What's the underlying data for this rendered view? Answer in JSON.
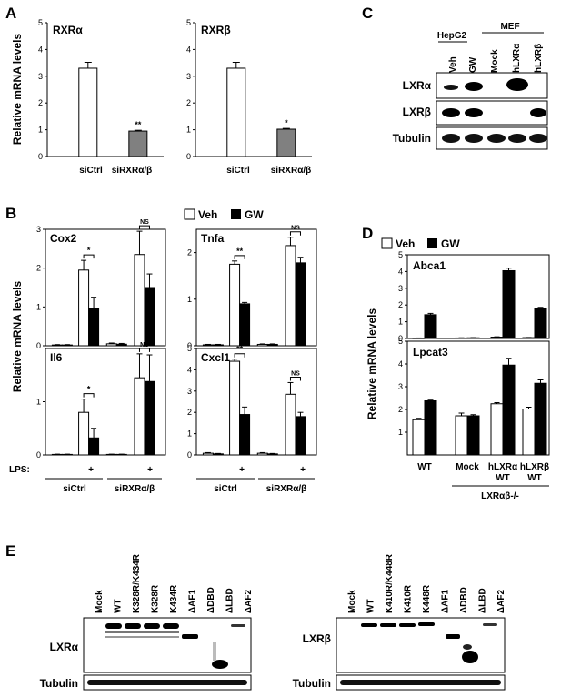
{
  "panels": {
    "A": "A",
    "B": "B",
    "C": "C",
    "D": "D",
    "E": "E"
  },
  "common": {
    "ylabel": "Relative mRNA levels",
    "veh": "Veh",
    "gw": "GW",
    "ns": "NS",
    "lps": "LPS:",
    "minus": "–",
    "plus": "+"
  },
  "chart_data": [
    {
      "id": "A1",
      "type": "bar",
      "title": "RXRα",
      "categories": [
        "siCtrl",
        "siRXRα/β"
      ],
      "values": [
        3.3,
        0.95
      ],
      "errors": [
        0.22,
        0.03
      ],
      "sig": [
        "",
        "**"
      ],
      "colors": [
        "#ffffff",
        "#808080"
      ],
      "ylabel": "Relative mRNA levels",
      "ylim": [
        0,
        5
      ],
      "yticks": [
        0,
        1,
        2,
        3,
        4,
        5
      ]
    },
    {
      "id": "A2",
      "type": "bar",
      "title": "RXRβ",
      "categories": [
        "siCtrl",
        "siRXRα/β"
      ],
      "values": [
        3.3,
        1.02
      ],
      "errors": [
        0.22,
        0.03
      ],
      "sig": [
        "",
        "*"
      ],
      "colors": [
        "#ffffff",
        "#808080"
      ],
      "ylim": [
        0,
        5
      ],
      "yticks": [
        0,
        1,
        2,
        3,
        4,
        5
      ]
    },
    {
      "id": "B1",
      "type": "bar",
      "title": "Cox2",
      "x": [
        "LPS-",
        "LPS+",
        "LPS-",
        "LPS+"
      ],
      "groups": [
        "siCtrl",
        "siRXRα/β"
      ],
      "series": [
        {
          "name": "Veh",
          "values": [
            0.02,
            1.95,
            0.05,
            2.35
          ],
          "errors": [
            0.01,
            0.25,
            0.02,
            0.6
          ]
        },
        {
          "name": "GW",
          "values": [
            0.02,
            0.95,
            0.04,
            1.5
          ],
          "errors": [
            0.01,
            0.3,
            0.02,
            0.35
          ]
        }
      ],
      "sig": [
        {
          "pos": 1,
          "label": "*"
        },
        {
          "pos": 3,
          "label": "NS"
        }
      ],
      "ylabel": "Relative mRNA levels",
      "ylim": [
        0,
        3
      ],
      "yticks": [
        0,
        1,
        2,
        3
      ]
    },
    {
      "id": "B2",
      "type": "bar",
      "title": "Tnfa",
      "x": [
        "LPS-",
        "LPS+",
        "LPS-",
        "LPS+"
      ],
      "groups": [
        "siCtrl",
        "siRXRα/β"
      ],
      "series": [
        {
          "name": "Veh",
          "values": [
            0.02,
            1.75,
            0.03,
            2.15
          ],
          "errors": [
            0.01,
            0.07,
            0.01,
            0.18
          ]
        },
        {
          "name": "GW",
          "values": [
            0.02,
            0.9,
            0.03,
            1.78
          ],
          "errors": [
            0.01,
            0.03,
            0.01,
            0.12
          ]
        }
      ],
      "sig": [
        {
          "pos": 1,
          "label": "**"
        },
        {
          "pos": 3,
          "label": "NS"
        }
      ],
      "ylim": [
        0,
        2.5
      ],
      "yticks": [
        0,
        1,
        2
      ]
    },
    {
      "id": "B3",
      "type": "bar",
      "title": "Il6",
      "x": [
        "LPS-",
        "LPS+",
        "LPS-",
        "LPS+"
      ],
      "groups": [
        "siCtrl",
        "siRXRα/β"
      ],
      "series": [
        {
          "name": "Veh",
          "values": [
            0.01,
            0.8,
            0.01,
            1.45
          ],
          "errors": [
            0.005,
            0.25,
            0.005,
            0.45
          ]
        },
        {
          "name": "GW",
          "values": [
            0.01,
            0.32,
            0.01,
            1.38
          ],
          "errors": [
            0.005,
            0.18,
            0.005,
            0.5
          ]
        }
      ],
      "sig": [
        {
          "pos": 1,
          "label": "*"
        },
        {
          "pos": 3,
          "label": "NS"
        }
      ],
      "ylim": [
        0,
        2
      ],
      "yticks": [
        0,
        1
      ]
    },
    {
      "id": "B4",
      "type": "bar",
      "title": "Cxcl1",
      "x": [
        "LPS-",
        "LPS+",
        "LPS-",
        "LPS+"
      ],
      "groups": [
        "siCtrl",
        "siRXRα/β"
      ],
      "series": [
        {
          "name": "Veh",
          "values": [
            0.08,
            4.4,
            0.08,
            2.85
          ],
          "errors": [
            0.03,
            0.1,
            0.03,
            0.55
          ]
        },
        {
          "name": "GW",
          "values": [
            0.05,
            1.9,
            0.05,
            1.8
          ],
          "errors": [
            0.02,
            0.35,
            0.02,
            0.2
          ]
        }
      ],
      "sig": [
        {
          "pos": 1,
          "label": "**"
        },
        {
          "pos": 3,
          "label": "NS"
        }
      ],
      "ylim": [
        0,
        5
      ],
      "yticks": [
        0,
        1,
        2,
        3,
        4,
        5
      ]
    },
    {
      "id": "D1",
      "type": "bar",
      "title": "Abca1",
      "categories": [
        "WT",
        "Mock",
        "hLXRα WT",
        "hLXRβ WT"
      ],
      "series": [
        {
          "name": "Veh",
          "values": [
            0.02,
            0.03,
            0.08,
            0.05
          ],
          "errors": [
            0.01,
            0.01,
            0.02,
            0.01
          ]
        },
        {
          "name": "GW",
          "values": [
            1.42,
            0.04,
            4.05,
            1.82
          ],
          "errors": [
            0.08,
            0.01,
            0.15,
            0.04
          ]
        }
      ],
      "ylabel": "Relative mRNA levels",
      "ylim": [
        0,
        5
      ],
      "yticks": [
        0,
        1,
        2,
        3,
        4,
        5
      ]
    },
    {
      "id": "D2",
      "type": "bar",
      "title": "Lpcat3",
      "categories": [
        "WT",
        "Mock",
        "hLXRα WT",
        "hLXRβ WT"
      ],
      "series": [
        {
          "name": "Veh",
          "values": [
            1.55,
            1.72,
            2.25,
            2.02
          ],
          "errors": [
            0.06,
            0.12,
            0.05,
            0.08
          ]
        },
        {
          "name": "GW",
          "values": [
            2.38,
            1.72,
            3.95,
            3.15
          ],
          "errors": [
            0.03,
            0.05,
            0.3,
            0.15
          ]
        }
      ],
      "ylim": [
        0,
        5
      ],
      "yticks": [
        1,
        2,
        3,
        4,
        5
      ]
    }
  ],
  "axis_labels": {
    "A": [
      "siCtrl",
      "siRXRα/β"
    ],
    "B_groups": [
      "siCtrl",
      "siRXRα/β"
    ],
    "D": [
      "WT",
      "Mock",
      "hLXRα",
      "WT",
      "hLXRβ",
      "WT"
    ],
    "D_group": "LXRαβ-/-"
  },
  "blotC": {
    "groups": [
      "HepG2",
      "MEF"
    ],
    "lanes": [
      "Veh",
      "GW",
      "Mock",
      "hLXRα",
      "hLXRβ"
    ],
    "rows": [
      "LXRα",
      "LXRβ",
      "Tubulin"
    ]
  },
  "blotE": {
    "left": {
      "lanes": [
        "Mock",
        "WT",
        "K328R/K434R",
        "K328R",
        "K434R",
        "ΔAF1",
        "ΔDBD",
        "ΔLBD",
        "ΔAF2"
      ],
      "rows": [
        "LXRα",
        "Tubulin"
      ]
    },
    "right": {
      "lanes": [
        "Mock",
        "WT",
        "K410R/K448R",
        "K410R",
        "K448R",
        "ΔAF1",
        "ΔDBD",
        "ΔLBD",
        "ΔAF2"
      ],
      "rows": [
        "LXRβ",
        "Tubulin"
      ]
    }
  }
}
